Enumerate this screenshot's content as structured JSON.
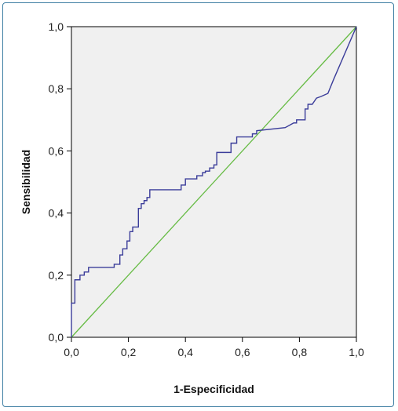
{
  "chart_data": {
    "type": "line",
    "title": "",
    "xlabel": "1-Especificidad",
    "ylabel": "Sensibilidad",
    "xlim": [
      0,
      1
    ],
    "ylim": [
      0,
      1
    ],
    "x_ticks": [
      "0,0",
      "0,2",
      "0,4",
      "0,6",
      "0,8",
      "1,0"
    ],
    "y_ticks": [
      "0,0",
      "0,2",
      "0,4",
      "0,6",
      "0,8",
      "1,0"
    ],
    "grid": false,
    "legend": "none",
    "background_color": "#f0f0f0",
    "series": [
      {
        "color": "#3b3d9a",
        "points": [
          [
            0,
            0
          ],
          [
            0,
            0.11
          ],
          [
            0.012,
            0.11
          ],
          [
            0.012,
            0.185
          ],
          [
            0.03,
            0.185
          ],
          [
            0.03,
            0.2
          ],
          [
            0.045,
            0.2
          ],
          [
            0.045,
            0.21
          ],
          [
            0.06,
            0.21
          ],
          [
            0.06,
            0.225
          ],
          [
            0.15,
            0.225
          ],
          [
            0.15,
            0.235
          ],
          [
            0.17,
            0.235
          ],
          [
            0.17,
            0.265
          ],
          [
            0.18,
            0.265
          ],
          [
            0.18,
            0.285
          ],
          [
            0.195,
            0.285
          ],
          [
            0.195,
            0.31
          ],
          [
            0.205,
            0.31
          ],
          [
            0.205,
            0.34
          ],
          [
            0.215,
            0.34
          ],
          [
            0.215,
            0.355
          ],
          [
            0.235,
            0.355
          ],
          [
            0.235,
            0.415
          ],
          [
            0.245,
            0.415
          ],
          [
            0.245,
            0.43
          ],
          [
            0.255,
            0.43
          ],
          [
            0.255,
            0.44
          ],
          [
            0.265,
            0.44
          ],
          [
            0.265,
            0.45
          ],
          [
            0.275,
            0.45
          ],
          [
            0.275,
            0.475
          ],
          [
            0.385,
            0.475
          ],
          [
            0.385,
            0.49
          ],
          [
            0.4,
            0.49
          ],
          [
            0.4,
            0.51
          ],
          [
            0.44,
            0.51
          ],
          [
            0.44,
            0.52
          ],
          [
            0.46,
            0.52
          ],
          [
            0.46,
            0.53
          ],
          [
            0.47,
            0.53
          ],
          [
            0.47,
            0.535
          ],
          [
            0.485,
            0.535
          ],
          [
            0.485,
            0.545
          ],
          [
            0.5,
            0.545
          ],
          [
            0.5,
            0.555
          ],
          [
            0.51,
            0.555
          ],
          [
            0.51,
            0.595
          ],
          [
            0.56,
            0.595
          ],
          [
            0.56,
            0.625
          ],
          [
            0.58,
            0.625
          ],
          [
            0.58,
            0.645
          ],
          [
            0.635,
            0.645
          ],
          [
            0.635,
            0.655
          ],
          [
            0.65,
            0.655
          ],
          [
            0.65,
            0.665
          ],
          [
            0.75,
            0.675
          ],
          [
            0.78,
            0.69
          ],
          [
            0.79,
            0.69
          ],
          [
            0.79,
            0.7
          ],
          [
            0.82,
            0.7
          ],
          [
            0.82,
            0.735
          ],
          [
            0.83,
            0.735
          ],
          [
            0.83,
            0.75
          ],
          [
            0.845,
            0.75
          ],
          [
            0.86,
            0.77
          ],
          [
            0.875,
            0.775
          ],
          [
            0.9,
            0.785
          ],
          [
            0.92,
            0.83
          ],
          [
            1.0,
            1.0
          ]
        ]
      },
      {
        "color": "#66bb44",
        "points": [
          [
            0,
            0
          ],
          [
            1,
            1
          ]
        ]
      }
    ]
  }
}
